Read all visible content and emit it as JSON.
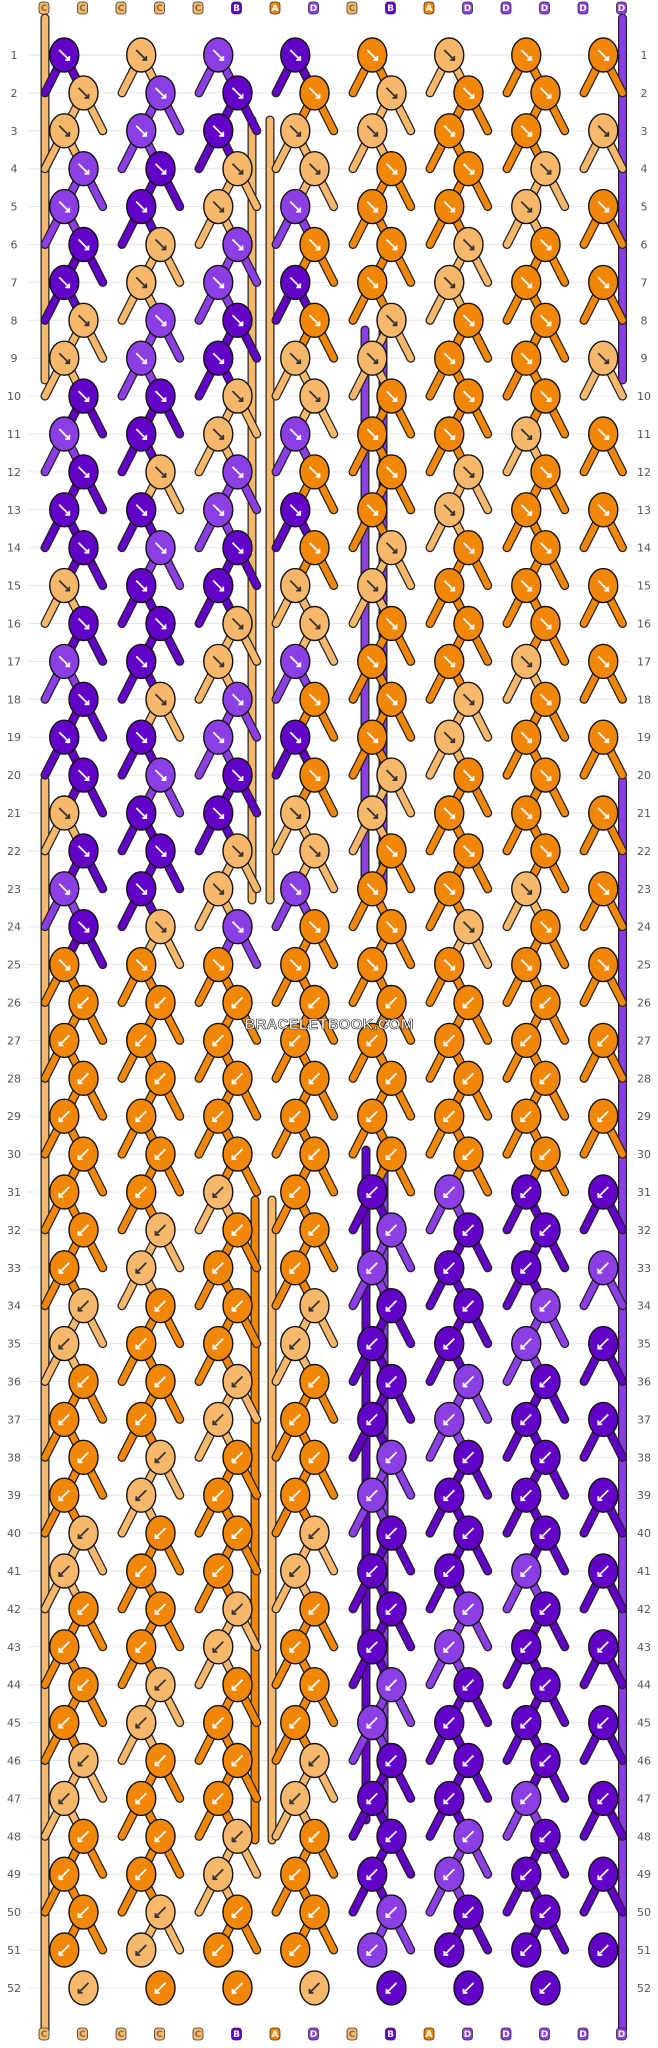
{
  "watermark": "BRACELETBOOK.COM",
  "rows": [
    "1",
    "2",
    "3",
    "4",
    "5",
    "6",
    "7",
    "8",
    "9",
    "10",
    "11",
    "12",
    "13",
    "14",
    "15",
    "16",
    "17",
    "18",
    "19",
    "20",
    "21",
    "22",
    "23",
    "24",
    "25",
    "26",
    "27",
    "28",
    "29",
    "30",
    "31",
    "32",
    "33",
    "34",
    "35",
    "36",
    "37",
    "38",
    "39",
    "40",
    "41",
    "42",
    "43",
    "44",
    "45",
    "46",
    "47",
    "48",
    "49",
    "50",
    "51",
    "52"
  ],
  "strands": [
    "C",
    "C",
    "C",
    "C",
    "C",
    "B",
    "A",
    "D",
    "C",
    "B",
    "A",
    "D",
    "D",
    "D",
    "D",
    "D"
  ],
  "colors": {
    "A": "#f28705",
    "B": "#6201c8",
    "C": "#f8b86c",
    "D": "#8b3ee4"
  }
}
